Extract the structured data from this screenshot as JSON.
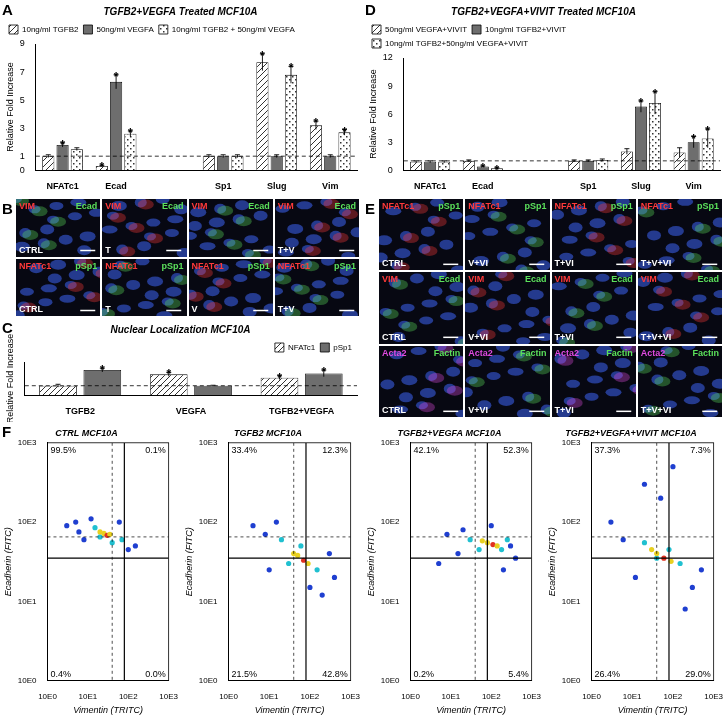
{
  "chart_data": [
    {
      "panel": "A",
      "type": "bar",
      "title": "TGFB2+VEGFA Treated MCF10A",
      "y_label": "Relative Fold Increase",
      "categories": [
        "NFATc1",
        "Ecad",
        null,
        "Sp1",
        "Slug",
        "Vim"
      ],
      "series": [
        {
          "name": "10ng/ml TGFB2",
          "color": "#333333",
          "values": [
            1.0,
            0.3,
            null,
            1.0,
            7.7,
            3.2
          ],
          "errors": [
            0.1,
            0.05,
            null,
            0.1,
            0.6,
            0.3
          ]
        },
        {
          "name": "50ng/ml VEGFA",
          "color": "#6e6e6e",
          "values": [
            1.8,
            6.3,
            null,
            1.0,
            1.0,
            1.0
          ],
          "errors": [
            0.15,
            0.5,
            null,
            0.1,
            0.1,
            0.1
          ]
        },
        {
          "name": "10ng/ml TGFB2 + 50ng/ml VEGFA",
          "color": "#333333",
          "values": [
            1.5,
            2.6,
            null,
            1.0,
            6.8,
            2.7
          ],
          "errors": [
            0.1,
            0.2,
            null,
            0.1,
            0.6,
            0.2
          ]
        }
      ],
      "ylim": [
        0,
        9
      ],
      "yticks": [
        0,
        1,
        3,
        5,
        7,
        9
      ],
      "reference_line": 1,
      "legend": "top left",
      "grid": false,
      "annotations": [
        {
          "text": "*",
          "category": "NFATc1",
          "series": "50ng/ml VEGFA"
        },
        {
          "text": "*",
          "category": "Ecad",
          "series": "10ng/ml TGFB2"
        },
        {
          "text": "*",
          "category": "Ecad",
          "series": "50ng/ml VEGFA"
        },
        {
          "text": "*",
          "category": "Ecad",
          "series": "10ng/ml TGFB2 + 50ng/ml VEGFA"
        },
        {
          "text": "*",
          "category": "Slug",
          "series": "10ng/ml TGFB2"
        },
        {
          "text": "*",
          "category": "Slug",
          "series": "10ng/ml TGFB2 + 50ng/ml VEGFA"
        },
        {
          "text": "*",
          "category": "Vim",
          "series": "10ng/ml TGFB2"
        },
        {
          "text": "*",
          "category": "Vim",
          "series": "10ng/ml TGFB2 + 50ng/ml VEGFA"
        }
      ]
    },
    {
      "panel": "D",
      "type": "bar",
      "title": "TGFB2+VEGFA+VIVIT Treated MCF10A",
      "y_label": "Relative Fold Increase",
      "categories": [
        "NFATc1",
        "Ecad",
        null,
        "Sp1",
        "Slug",
        "Vim"
      ],
      "series": [
        {
          "name": "50ng/ml VEGFA+VIVIT",
          "color": "#333333",
          "values": [
            0.9,
            1.0,
            null,
            1.0,
            2.0,
            1.9
          ],
          "errors": [
            0.1,
            0.1,
            null,
            0.1,
            0.3,
            0.5
          ]
        },
        {
          "name": "10ng/ml TGFB2+VIVIT",
          "color": "#6e6e6e",
          "values": [
            0.9,
            0.4,
            null,
            1.0,
            6.8,
            3.0
          ],
          "errors": [
            0.1,
            0.05,
            null,
            0.1,
            0.6,
            0.6
          ]
        },
        {
          "name": "10ng/ml TGFB2+50ng/ml VEGFA+VIVIT",
          "color": "#333333",
          "values": [
            0.9,
            0.2,
            null,
            1.1,
            7.2,
            3.4
          ],
          "errors": [
            0.1,
            0.05,
            null,
            0.1,
            1.2,
            1.0
          ]
        }
      ],
      "ylim": [
        0,
        12
      ],
      "yticks": [
        0,
        3,
        6,
        9,
        12
      ],
      "reference_line": 1,
      "legend": "top left",
      "grid": false,
      "annotations": [
        {
          "text": "*",
          "category": "Ecad",
          "series": "10ng/ml TGFB2+VIVIT"
        },
        {
          "text": "*",
          "category": "Ecad",
          "series": "10ng/ml TGFB2+50ng/ml VEGFA+VIVIT"
        },
        {
          "text": "*",
          "category": "Slug",
          "series": "10ng/ml TGFB2+VIVIT"
        },
        {
          "text": "*",
          "category": "Slug",
          "series": "10ng/ml TGFB2+50ng/ml VEGFA+VIVIT"
        },
        {
          "text": "*",
          "category": "Vim",
          "series": "10ng/ml TGFB2+VIVIT"
        },
        {
          "text": "*",
          "category": "Vim",
          "series": "10ng/ml TGFB2+50ng/ml VEGFA+VIVIT"
        }
      ]
    },
    {
      "panel": "C",
      "type": "bar",
      "title": "Nuclear Localization MCF10A",
      "y_label": "Relative Fold Increase",
      "categories": [
        "TGFB2",
        "VEGFA",
        "TGFB2+VEGFA"
      ],
      "series": [
        {
          "name": "NFATc1",
          "color": "#333333",
          "values": [
            1.0,
            2.2,
            1.85
          ],
          "errors": [
            0.15,
            0.2,
            0.2
          ]
        },
        {
          "name": "pSp1",
          "color": "#6e6e6e",
          "values": [
            2.65,
            1.0,
            2.3
          ],
          "errors": [
            0.2,
            0.05,
            0.35
          ]
        }
      ],
      "ylim": [
        0,
        3.5
      ],
      "tick_labels": "x",
      "reference_line": 1,
      "legend": "top right",
      "grid": false,
      "annotations": [
        {
          "text": "*",
          "category": "TGFB2",
          "series": "pSp1"
        },
        {
          "text": "*",
          "category": "VEGFA",
          "series": "NFATc1"
        },
        {
          "text": "*",
          "category": "TGFB2+VEGFA",
          "series": "NFATc1"
        },
        {
          "text": "*",
          "category": "TGFB2+VEGFA",
          "series": "pSp1"
        }
      ]
    },
    {
      "panel": "F",
      "type": "scatter",
      "title": "CTRL MCF10A",
      "x_label": "Vimentin (TRITC)",
      "y_label": "Ecadherin (FITC)",
      "log": true,
      "grid": false,
      "x": [
        3,
        5,
        8,
        12,
        150,
        100,
        60,
        6,
        15,
        40,
        20,
        70,
        25,
        30,
        20,
        35
      ],
      "values": [
        90,
        100,
        60,
        110,
        50,
        45,
        100,
        75,
        85,
        55,
        65,
        60,
        72,
        68,
        75,
        70
      ],
      "colors": [
        "#1f3fd0",
        "#1f3fd0",
        "#1f3fd0",
        "#1f3fd0",
        "#1f3fd0",
        "#1f3fd0",
        "#1f3fd0",
        "#1f3fd0",
        "#20c0d0",
        "#20c0d0",
        "#20c0d0",
        "#20c0d0",
        "#e8d020",
        "#e03020",
        "#e8d020",
        "#e8d020"
      ],
      "xlim": [
        1,
        1000
      ],
      "ylim": [
        1,
        1000
      ],
      "xticks": [
        {
          "value": 1,
          "label": "10E0"
        },
        {
          "value": 10,
          "label": "10E1"
        },
        {
          "value": 100,
          "label": "10E2"
        },
        {
          "value": 1000,
          "label": "10E3"
        }
      ],
      "yticks": [
        {
          "value": 1,
          "label": "10E0"
        },
        {
          "value": 10,
          "label": "10E1"
        },
        {
          "value": 100,
          "label": "10E2"
        },
        {
          "value": 1000,
          "label": "10E3"
        }
      ],
      "gate": {
        "x": 80,
        "y": 35
      },
      "reference_gate": {
        "x": 40,
        "y": 65
      },
      "quadrants": [
        {
          "value": 99.5,
          "label": "99.5%",
          "position": "upper left"
        },
        {
          "value": 0.1,
          "label": "0.1%",
          "position": "upper right"
        },
        {
          "value": 0.4,
          "label": "0.4%",
          "position": "lower left"
        },
        {
          "value": 0.0,
          "label": "0.0%",
          "position": "lower right"
        }
      ]
    },
    {
      "type": "scatter",
      "title": "TGFB2 MCF10A",
      "x_label": "Vimentin (TRITC)",
      "y_label": "Ecadherin (FITC)",
      "log": true,
      "grid": false,
      "x": [
        4,
        8,
        200,
        400,
        15,
        300,
        10,
        100,
        20,
        150,
        60,
        30,
        50,
        70,
        40,
        90
      ],
      "values": [
        90,
        70,
        12,
        20,
        100,
        40,
        25,
        15,
        60,
        25,
        50,
        30,
        38,
        33,
        40,
        30
      ],
      "colors": [
        "#1f3fd0",
        "#1f3fd0",
        "#1f3fd0",
        "#1f3fd0",
        "#1f3fd0",
        "#1f3fd0",
        "#1f3fd0",
        "#1f3fd0",
        "#20c0d0",
        "#20c0d0",
        "#20c0d0",
        "#20c0d0",
        "#e8d020",
        "#e03020",
        "#e8d020",
        "#e8d020"
      ],
      "xlim": [
        1,
        1000
      ],
      "ylim": [
        1,
        1000
      ],
      "xticks": [
        {
          "value": 1,
          "label": "10E0"
        },
        {
          "value": 10,
          "label": "10E1"
        },
        {
          "value": 100,
          "label": "10E2"
        },
        {
          "value": 1000,
          "label": "10E3"
        }
      ],
      "yticks": [
        {
          "value": 1,
          "label": "10E0"
        },
        {
          "value": 10,
          "label": "10E1"
        },
        {
          "value": 100,
          "label": "10E2"
        },
        {
          "value": 1000,
          "label": "10E3"
        }
      ],
      "gate": {
        "x": 80,
        "y": 35
      },
      "reference_gate": {
        "x": 40,
        "y": 65
      },
      "quadrants": [
        {
          "value": 33.4,
          "label": "33.4%",
          "position": "upper left"
        },
        {
          "value": 12.3,
          "label": "12.3%",
          "position": "upper right"
        },
        {
          "value": 21.5,
          "label": "21.5%",
          "position": "lower left"
        },
        {
          "value": 42.8,
          "label": "42.8%",
          "position": "lower right"
        }
      ]
    },
    {
      "type": "scatter",
      "title": "TGFB2+VEGFA MCF10A",
      "x_label": "Vimentin (TRITC)",
      "y_label": "Ecadherin (FITC)",
      "log": true,
      "grid": false,
      "x": [
        5,
        8,
        300,
        400,
        20,
        200,
        15,
        100,
        30,
        180,
        50,
        250,
        80,
        110,
        60,
        140
      ],
      "values": [
        30,
        70,
        50,
        35,
        80,
        25,
        40,
        90,
        60,
        45,
        45,
        60,
        55,
        52,
        58,
        50
      ],
      "colors": [
        "#1f3fd0",
        "#1f3fd0",
        "#1f3fd0",
        "#1f3fd0",
        "#1f3fd0",
        "#1f3fd0",
        "#1f3fd0",
        "#1f3fd0",
        "#20c0d0",
        "#20c0d0",
        "#20c0d0",
        "#20c0d0",
        "#e8d020",
        "#e03020",
        "#e8d020",
        "#e8d020"
      ],
      "xlim": [
        1,
        1000
      ],
      "ylim": [
        1,
        1000
      ],
      "xticks": [
        {
          "value": 1,
          "label": "10E0"
        },
        {
          "value": 10,
          "label": "10E1"
        },
        {
          "value": 100,
          "label": "10E2"
        },
        {
          "value": 1000,
          "label": "10E3"
        }
      ],
      "yticks": [
        {
          "value": 1,
          "label": "10E0"
        },
        {
          "value": 10,
          "label": "10E1"
        },
        {
          "value": 100,
          "label": "10E2"
        },
        {
          "value": 1000,
          "label": "10E3"
        }
      ],
      "gate": {
        "x": 80,
        "y": 35
      },
      "reference_gate": {
        "x": 40,
        "y": 65
      },
      "quadrants": [
        {
          "value": 42.1,
          "label": "42.1%",
          "position": "upper left"
        },
        {
          "value": 52.3,
          "label": "52.3%",
          "position": "upper right"
        },
        {
          "value": 0.2,
          "label": "0.2%",
          "position": "lower left"
        },
        {
          "value": 5.4,
          "label": "5.4%",
          "position": "lower right"
        }
      ]
    },
    {
      "type": "scatter",
      "title": "TGFB2+VEGFA+VIVIT MCF10A",
      "x_label": "Vimentin (TRITC)",
      "y_label": "Ecadherin (FITC)",
      "log": true,
      "grid": false,
      "x": [
        3,
        6,
        300,
        500,
        20,
        100,
        50,
        12,
        200,
        20,
        150,
        40,
        80,
        40,
        60,
        30,
        90
      ],
      "values": [
        100,
        60,
        15,
        25,
        300,
        500,
        200,
        20,
        8,
        55,
        30,
        35,
        45,
        40,
        35,
        45,
        32
      ],
      "colors": [
        "#1f3fd0",
        "#1f3fd0",
        "#1f3fd0",
        "#1f3fd0",
        "#1f3fd0",
        "#1f3fd0",
        "#1f3fd0",
        "#1f3fd0",
        "#1f3fd0",
        "#20c0d0",
        "#20c0d0",
        "#20c0d0",
        "#20c0d0",
        "#e8d020",
        "#e03020",
        "#e8d020",
        "#e8d020"
      ],
      "xlim": [
        1,
        1000
      ],
      "ylim": [
        1,
        1000
      ],
      "xticks": [
        {
          "value": 1,
          "label": "10E0"
        },
        {
          "value": 10,
          "label": "10E1"
        },
        {
          "value": 100,
          "label": "10E2"
        },
        {
          "value": 1000,
          "label": "10E3"
        }
      ],
      "yticks": [
        {
          "value": 1,
          "label": "10E0"
        },
        {
          "value": 10,
          "label": "10E1"
        },
        {
          "value": 100,
          "label": "10E2"
        },
        {
          "value": 1000,
          "label": "10E3"
        }
      ],
      "gate": {
        "x": 80,
        "y": 35
      },
      "reference_gate": {
        "x": 40,
        "y": 65
      },
      "quadrants": [
        {
          "value": 37.3,
          "label": "37.3%",
          "position": "upper left"
        },
        {
          "value": 7.3,
          "label": "7.3%",
          "position": "upper right"
        },
        {
          "value": 26.4,
          "label": "26.4%",
          "position": "lower left"
        },
        {
          "value": 29.0,
          "label": "29.0%",
          "position": "lower right"
        }
      ]
    }
  ],
  "image_panels": [
    {
      "panel": "B",
      "rows": [
        {
          "labels": [
            {
              "text": "VIM",
              "color": "#ff3a3a"
            },
            {
              "text": "Ecad",
              "color": "#5be05b"
            }
          ],
          "captions": [
            "CTRL",
            "T",
            null,
            "T+V"
          ]
        },
        {
          "labels": [
            {
              "text": "NFATc1",
              "color": "#ff3a3a"
            },
            {
              "text": "pSp1",
              "color": "#5be05b"
            }
          ],
          "captions": [
            "CTRL",
            "T",
            "V",
            "T+V"
          ]
        }
      ]
    },
    {
      "panel": "E",
      "rows": [
        {
          "labels": [
            {
              "text": "NFATc1",
              "color": "#ff3a3a"
            },
            {
              "text": "pSp1",
              "color": "#5be05b"
            }
          ],
          "captions": [
            "CTRL",
            "V+VI",
            "T+VI",
            "T+V+VI"
          ]
        },
        {
          "labels": [
            {
              "text": "VIM",
              "color": "#ff3a3a"
            },
            {
              "text": "Ecad",
              "color": "#5be05b"
            }
          ],
          "captions": [
            "CTRL",
            "V+VI",
            "T+VI",
            "T+V+VI"
          ]
        },
        {
          "labels": [
            {
              "text": "Acta2",
              "color": "#e04ae0"
            },
            {
              "text": "Factin",
              "color": "#5be05b"
            }
          ],
          "captions": [
            "CTRL",
            "V+VI",
            "T+VI",
            "T+V+VI"
          ]
        }
      ]
    }
  ]
}
